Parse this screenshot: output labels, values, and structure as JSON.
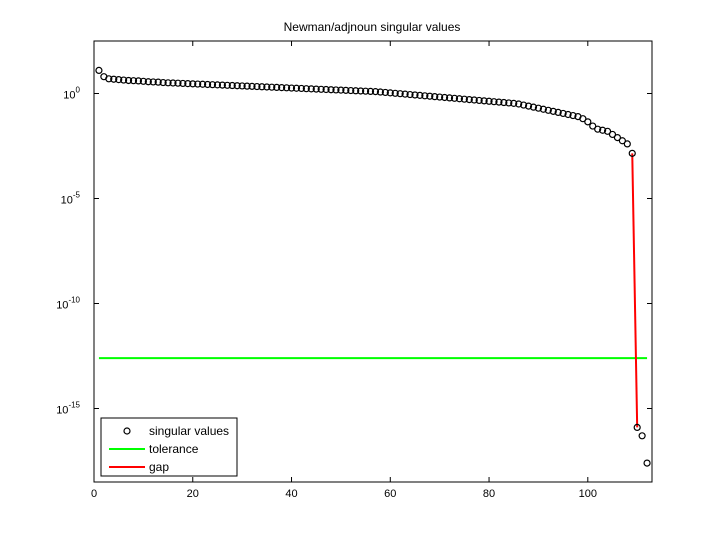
{
  "chart_data": {
    "type": "scatter",
    "title": "Newman/adjnoun singular values",
    "xlabel": "",
    "ylabel": "",
    "xlim": [
      0,
      113
    ],
    "ylim_log10": [
      -18.5,
      2.5
    ],
    "yscale": "log",
    "x_ticks": [
      "0",
      "20",
      "40",
      "60",
      "80",
      "100"
    ],
    "y_ticks": [
      {
        "base": "10",
        "exp": "0",
        "log10": 0
      },
      {
        "base": "10",
        "exp": "-5",
        "log10": -5
      },
      {
        "base": "10",
        "exp": "-10",
        "log10": -10
      },
      {
        "base": "10",
        "exp": "-15",
        "log10": -15
      }
    ],
    "grid": false,
    "legend_position": "bottom-left",
    "series": [
      {
        "name": "singular values",
        "style": "markers",
        "color": "#000000",
        "marker": "circle",
        "x": [
          1,
          2,
          3,
          4,
          5,
          6,
          7,
          8,
          9,
          10,
          11,
          12,
          13,
          14,
          15,
          16,
          17,
          18,
          19,
          20,
          21,
          22,
          23,
          24,
          25,
          26,
          27,
          28,
          29,
          30,
          31,
          32,
          33,
          34,
          35,
          36,
          37,
          38,
          39,
          40,
          41,
          42,
          43,
          44,
          45,
          46,
          47,
          48,
          49,
          50,
          51,
          52,
          53,
          54,
          55,
          56,
          57,
          58,
          59,
          60,
          61,
          62,
          63,
          64,
          65,
          66,
          67,
          68,
          69,
          70,
          71,
          72,
          73,
          74,
          75,
          76,
          77,
          78,
          79,
          80,
          81,
          82,
          83,
          84,
          85,
          86,
          87,
          88,
          89,
          90,
          91,
          92,
          93,
          94,
          95,
          96,
          97,
          98,
          99,
          100,
          101,
          102,
          103,
          104,
          105,
          106,
          107,
          108,
          109,
          110,
          111,
          112
        ],
        "y_log10": [
          1.1,
          0.8,
          0.7,
          0.68,
          0.66,
          0.64,
          0.62,
          0.61,
          0.6,
          0.58,
          0.56,
          0.55,
          0.54,
          0.52,
          0.51,
          0.5,
          0.49,
          0.48,
          0.47,
          0.46,
          0.45,
          0.44,
          0.43,
          0.42,
          0.41,
          0.4,
          0.39,
          0.38,
          0.37,
          0.36,
          0.35,
          0.34,
          0.33,
          0.32,
          0.31,
          0.3,
          0.29,
          0.28,
          0.27,
          0.26,
          0.25,
          0.24,
          0.23,
          0.22,
          0.21,
          0.2,
          0.19,
          0.18,
          0.17,
          0.16,
          0.15,
          0.14,
          0.13,
          0.12,
          0.11,
          0.1,
          0.09,
          0.07,
          0.05,
          0.03,
          0.01,
          -0.01,
          -0.03,
          -0.05,
          -0.07,
          -0.09,
          -0.11,
          -0.13,
          -0.15,
          -0.17,
          -0.19,
          -0.21,
          -0.23,
          -0.25,
          -0.27,
          -0.29,
          -0.31,
          -0.33,
          -0.35,
          -0.37,
          -0.39,
          -0.41,
          -0.43,
          -0.45,
          -0.47,
          -0.5,
          -0.55,
          -0.6,
          -0.65,
          -0.7,
          -0.75,
          -0.8,
          -0.85,
          -0.9,
          -0.95,
          -1.0,
          -1.05,
          -1.1,
          -1.2,
          -1.35,
          -1.55,
          -1.7,
          -1.75,
          -1.8,
          -1.95,
          -2.1,
          -2.25,
          -2.4,
          -2.85,
          -15.9,
          -16.3,
          -17.6
        ]
      },
      {
        "name": "tolerance",
        "style": "line",
        "color": "#00ff00",
        "x": [
          1,
          112
        ],
        "y_log10": [
          -12.6,
          -12.6
        ]
      },
      {
        "name": "gap",
        "style": "line",
        "color": "#ff0000",
        "x": [
          109,
          110
        ],
        "y_log10": [
          -2.85,
          -15.9
        ]
      }
    ]
  }
}
